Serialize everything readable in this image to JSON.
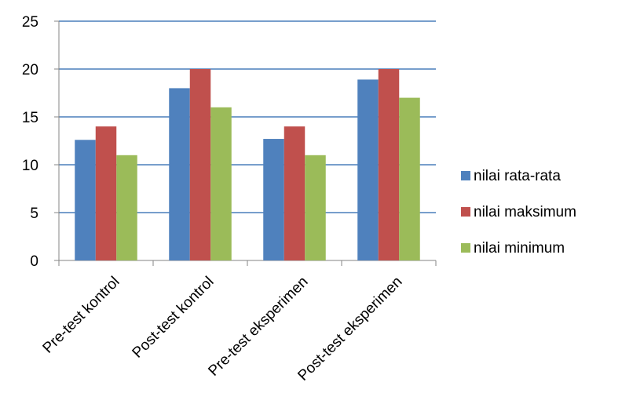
{
  "chart_data": {
    "type": "bar",
    "title": "",
    "xlabel": "",
    "ylabel": "",
    "categories": [
      "Pre-test kontrol",
      "Post-test kontrol",
      "Pre-test eksperimen",
      "Post-test eksperimen"
    ],
    "series": [
      {
        "name": "nilai rata-rata",
        "color": "#4F81BD",
        "values": [
          12.6,
          18,
          12.7,
          18.9
        ]
      },
      {
        "name": "nilai maksimum",
        "color": "#C0504D",
        "values": [
          14,
          20,
          14,
          20
        ]
      },
      {
        "name": "nilai minimum",
        "color": "#9BBB59",
        "values": [
          11,
          16,
          11,
          17
        ]
      }
    ],
    "ylim": [
      0,
      25
    ],
    "yticks": [
      0,
      5,
      10,
      15,
      20,
      25
    ],
    "grid": true,
    "gridline_color": "#4A7EBB",
    "legend_position": "right"
  }
}
